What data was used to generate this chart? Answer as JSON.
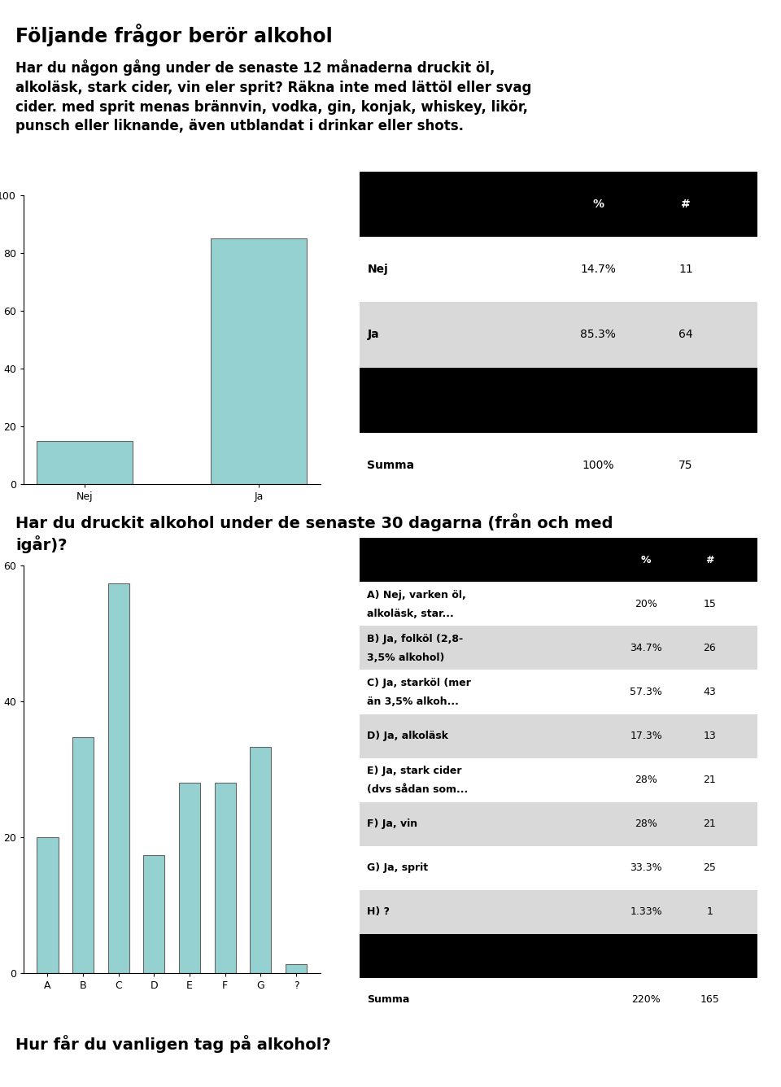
{
  "main_title": "Följande frågor berör alkohol",
  "q1_text_line1": "Har du någon gång under de senaste 12 månaderna druckit öl,",
  "q1_text_line2": "alkoläsk, stark cider, vin eler sprit? Räkna inte med lättöl eller svag",
  "q1_text_line3": "cider. med sprit menas brännvin, vodka, gin, konjak, whiskey, likör,",
  "q1_text_line4": "punsch eller liknande, även utblandat i drinkar eller shots.",
  "q1_bar_labels": [
    "Nej",
    "Ja"
  ],
  "q1_bar_values": [
    14.7,
    85.3
  ],
  "q1_ylim": [
    0,
    100
  ],
  "q1_yticks": [
    0,
    20,
    40,
    60,
    80,
    100
  ],
  "q1_table_rows": [
    [
      "Nej",
      "14.7%",
      "11"
    ],
    [
      "Ja",
      "85.3%",
      "64"
    ],
    [
      "Summa",
      "100%",
      "75"
    ]
  ],
  "q2_text_line1": "Har du druckit alkohol under de senaste 30 dagarna (från och med",
  "q2_text_line2": "igår)?",
  "q2_bar_labels": [
    "A",
    "B",
    "C",
    "D",
    "E",
    "F",
    "G",
    "?"
  ],
  "q2_bar_values": [
    20,
    34.7,
    57.3,
    17.3,
    28,
    28,
    33.3,
    1.33
  ],
  "q2_ylim": [
    0,
    60
  ],
  "q2_yticks": [
    0,
    20,
    40,
    60
  ],
  "q2_table_rows": [
    [
      "A) Nej, varken öl,\nalkoläsk, star...",
      "20%",
      "15"
    ],
    [
      "B) Ja, folköl (2,8-\n3,5% alkohol)",
      "34.7%",
      "26"
    ],
    [
      "C) Ja, starköl (mer\nän 3,5% alkoh...",
      "57.3%",
      "43"
    ],
    [
      "D) Ja, alkoläsk",
      "17.3%",
      "13"
    ],
    [
      "E) Ja, stark cider\n(dvs sådan som...",
      "28%",
      "21"
    ],
    [
      "F) Ja, vin",
      "28%",
      "21"
    ],
    [
      "G) Ja, sprit",
      "33.3%",
      "25"
    ],
    [
      "H) ?",
      "1.33%",
      "1"
    ],
    [
      "Summa",
      "220%",
      "165"
    ]
  ],
  "q3_text": "Hur får du vanligen tag på alkohol?",
  "bar_color": "#96d1d1",
  "bar_edge_color": "#666666",
  "bg_color": "#ffffff",
  "table_header_bg": "#000000",
  "table_header_fg": "#ffffff",
  "table_row_bg_alt": "#d9d9d9",
  "table_row_bg": "#ffffff"
}
